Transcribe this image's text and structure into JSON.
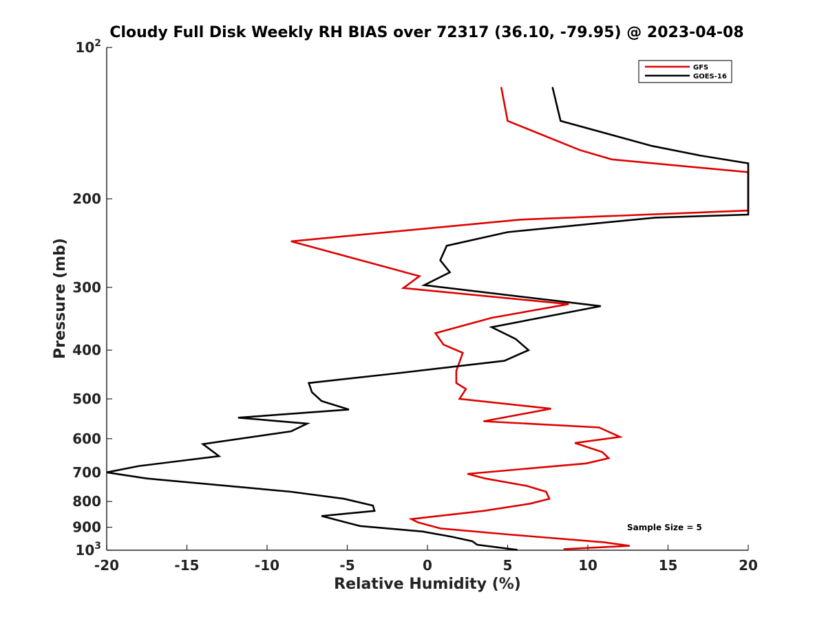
{
  "chart_data": {
    "type": "line",
    "title": "Cloudy Full Disk Weekly RH BIAS over 72317 (36.10, -79.95) @ 2023-04-08",
    "xlabel": "Relative Humidity (%)",
    "ylabel": "Pressure (mb)",
    "xlim": [
      -20,
      20
    ],
    "ylim": [
      1000,
      100
    ],
    "y_scale": "log",
    "y_inverted": true,
    "grid": false,
    "legend_position": "top-right",
    "annotation": "Sample Size = 5",
    "x_ticks": [
      -20,
      -15,
      -10,
      -5,
      0,
      5,
      10,
      15,
      20
    ],
    "x_tick_labels": [
      "-20",
      "-15",
      "-10",
      "-5",
      "0",
      "5",
      "10",
      "15",
      "20"
    ],
    "y_ticks": [
      {
        "value": 100,
        "label": "10",
        "sup": "2"
      },
      {
        "value": 200,
        "label": "200",
        "sup": ""
      },
      {
        "value": 300,
        "label": "300",
        "sup": ""
      },
      {
        "value": 400,
        "label": "400",
        "sup": ""
      },
      {
        "value": 500,
        "label": "500",
        "sup": ""
      },
      {
        "value": 600,
        "label": "600",
        "sup": ""
      },
      {
        "value": 700,
        "label": "700",
        "sup": ""
      },
      {
        "value": 800,
        "label": "800",
        "sup": ""
      },
      {
        "value": 900,
        "label": "900",
        "sup": ""
      },
      {
        "value": 1000,
        "label": "10",
        "sup": "3"
      }
    ],
    "series": [
      {
        "name": "GFS",
        "color": "#dd0000",
        "points": [
          [
            4.6,
            120
          ],
          [
            5.0,
            140
          ],
          [
            9.5,
            160
          ],
          [
            11.5,
            167
          ],
          [
            20,
            177
          ],
          [
            20,
            211
          ],
          [
            5.8,
            220
          ],
          [
            -8.5,
            243
          ],
          [
            -0.5,
            285
          ],
          [
            -1.5,
            301
          ],
          [
            8.8,
            324
          ],
          [
            4.0,
            345
          ],
          [
            0.5,
            370
          ],
          [
            1.0,
            390
          ],
          [
            2.2,
            405
          ],
          [
            1.8,
            440
          ],
          [
            1.8,
            465
          ],
          [
            2.4,
            478
          ],
          [
            2.0,
            500
          ],
          [
            7.7,
            523
          ],
          [
            3.5,
            554
          ],
          [
            10.7,
            570
          ],
          [
            12.0,
            595
          ],
          [
            9.2,
            612
          ],
          [
            10.9,
            638
          ],
          [
            11.3,
            656
          ],
          [
            9.9,
            672
          ],
          [
            2.5,
            705
          ],
          [
            3.6,
            720
          ],
          [
            6.2,
            745
          ],
          [
            7.4,
            765
          ],
          [
            7.6,
            790
          ],
          [
            6.4,
            808
          ],
          [
            3.5,
            835
          ],
          [
            -1.0,
            867
          ],
          [
            -0.6,
            880
          ],
          [
            0.8,
            905
          ],
          [
            5.0,
            930
          ],
          [
            11.0,
            964
          ],
          [
            12.6,
            980
          ],
          [
            8.5,
            995
          ]
        ]
      },
      {
        "name": "GOES-16",
        "color": "#000000",
        "points": [
          [
            7.8,
            120
          ],
          [
            8.3,
            140
          ],
          [
            14.0,
            157
          ],
          [
            17.0,
            164
          ],
          [
            20,
            170
          ],
          [
            20,
            215
          ],
          [
            14.2,
            218
          ],
          [
            5.0,
            233
          ],
          [
            1.2,
            248
          ],
          [
            0.8,
            265
          ],
          [
            1.4,
            280
          ],
          [
            -0.2,
            297
          ],
          [
            10.8,
            327
          ],
          [
            4.0,
            360
          ],
          [
            5.5,
            380
          ],
          [
            6.3,
            400
          ],
          [
            4.8,
            420
          ],
          [
            -2.0,
            445
          ],
          [
            -7.4,
            465
          ],
          [
            -7.2,
            485
          ],
          [
            -6.6,
            505
          ],
          [
            -4.9,
            525
          ],
          [
            -11.8,
            545
          ],
          [
            -7.5,
            560
          ],
          [
            -8.5,
            580
          ],
          [
            -14.0,
            615
          ],
          [
            -13.0,
            650
          ],
          [
            -18.0,
            680
          ],
          [
            -20,
            700
          ],
          [
            -17.5,
            720
          ],
          [
            -8.5,
            765
          ],
          [
            -5.2,
            790
          ],
          [
            -3.4,
            815
          ],
          [
            -3.3,
            835
          ],
          [
            -6.6,
            855
          ],
          [
            -5.7,
            870
          ],
          [
            -4.2,
            895
          ],
          [
            -0.3,
            918
          ],
          [
            1.5,
            940
          ],
          [
            2.8,
            960
          ],
          [
            3.1,
            975
          ],
          [
            5.6,
            998
          ]
        ]
      }
    ]
  }
}
